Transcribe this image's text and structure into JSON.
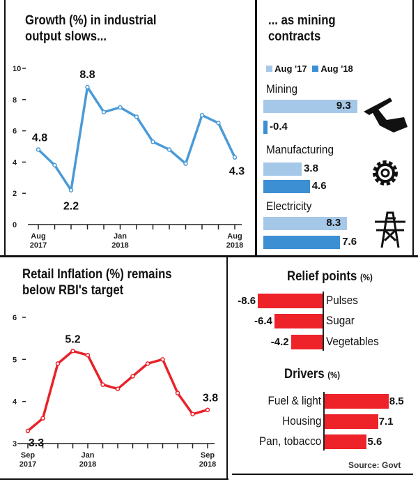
{
  "panels": {
    "industrial": {
      "title_line1": "Growth (%) in industrial",
      "title_line2": "output slows..."
    },
    "mining": {
      "title_line1": "... as mining",
      "title_line2": "contracts"
    },
    "inflation": {
      "title_line1": "Retail Inflation (%) remains",
      "title_line2": "below RBI's target"
    },
    "relief": {
      "title": "Relief points",
      "unit": "(%)"
    },
    "drivers": {
      "title": "Drivers",
      "unit": "(%)"
    },
    "source": "Source: Govt"
  },
  "chart_data": [
    {
      "type": "line",
      "title": "Growth (%) in industrial output slows...",
      "ylim": [
        0,
        10
      ],
      "yticks": [
        0,
        2,
        4,
        6,
        8,
        10
      ],
      "x": [
        "Aug 2017",
        "Sep 2017",
        "Oct 2017",
        "Nov 2017",
        "Dec 2017",
        "Jan 2018",
        "Feb 2018",
        "Mar 2018",
        "Apr 2018",
        "May 2018",
        "Jun 2018",
        "Jul 2018",
        "Aug 2018"
      ],
      "xtick_labels": [
        {
          "index": 0,
          "l1": "Aug",
          "l2": "2017"
        },
        {
          "index": 5,
          "l1": "Jan",
          "l2": "2018"
        },
        {
          "index": 12,
          "l1": "Aug",
          "l2": "2018"
        }
      ],
      "values": [
        4.8,
        3.8,
        2.2,
        8.8,
        7.2,
        7.5,
        6.9,
        5.3,
        4.8,
        3.9,
        7.0,
        6.5,
        4.3
      ],
      "data_labels": [
        {
          "index": 0,
          "text": "4.8"
        },
        {
          "index": 2,
          "text": "2.2"
        },
        {
          "index": 3,
          "text": "8.8"
        },
        {
          "index": 12,
          "text": "4.3"
        }
      ],
      "color": "#4a9ad8"
    },
    {
      "type": "bar",
      "orientation": "horizontal",
      "title": "... as mining contracts",
      "legend": [
        "Aug '17",
        "Aug '18"
      ],
      "colors": [
        "#a6c8e8",
        "#3d8fd4"
      ],
      "categories": [
        "Mining",
        "Manufacturing",
        "Electricity"
      ],
      "icons": [
        "pickaxe-icon",
        "gear-icon",
        "power-tower-icon"
      ],
      "series": [
        {
          "name": "Aug '17",
          "values": [
            9.3,
            3.8,
            8.3
          ]
        },
        {
          "name": "Aug '18",
          "values": [
            -0.4,
            4.6,
            7.6
          ]
        }
      ]
    },
    {
      "type": "line",
      "title": "Retail Inflation (%) remains below RBI's target",
      "ylim": [
        3,
        6
      ],
      "yticks": [
        3,
        4,
        5,
        6
      ],
      "x": [
        "Sep 2017",
        "Oct 2017",
        "Nov 2017",
        "Dec 2017",
        "Jan 2018",
        "Feb 2018",
        "Mar 2018",
        "Apr 2018",
        "May 2018",
        "Jun 2018",
        "Jul 2018",
        "Aug 2018",
        "Sep 2018"
      ],
      "xtick_labels": [
        {
          "index": 0,
          "l1": "Sep",
          "l2": "2017"
        },
        {
          "index": 4,
          "l1": "Jan",
          "l2": "2018"
        },
        {
          "index": 12,
          "l1": "Sep",
          "l2": "2018"
        }
      ],
      "values": [
        3.3,
        3.6,
        4.9,
        5.2,
        5.1,
        4.4,
        4.3,
        4.6,
        4.9,
        5.0,
        4.2,
        3.7,
        3.8
      ],
      "data_labels": [
        {
          "index": 0,
          "text": "3.3"
        },
        {
          "index": 3,
          "text": "5.2"
        },
        {
          "index": 12,
          "text": "3.8"
        }
      ],
      "color": "#e8222a"
    },
    {
      "type": "bar",
      "orientation": "horizontal",
      "title": "Relief points (%)",
      "categories": [
        "Pulses",
        "Sugar",
        "Vegetables"
      ],
      "values": [
        -8.6,
        -6.4,
        -4.2
      ],
      "color": "#ee2229"
    },
    {
      "type": "bar",
      "orientation": "horizontal",
      "title": "Drivers (%)",
      "categories": [
        "Fuel & light",
        "Housing",
        "Pan, tobacco"
      ],
      "values": [
        8.5,
        7.1,
        5.6
      ],
      "color": "#ee2229"
    }
  ]
}
